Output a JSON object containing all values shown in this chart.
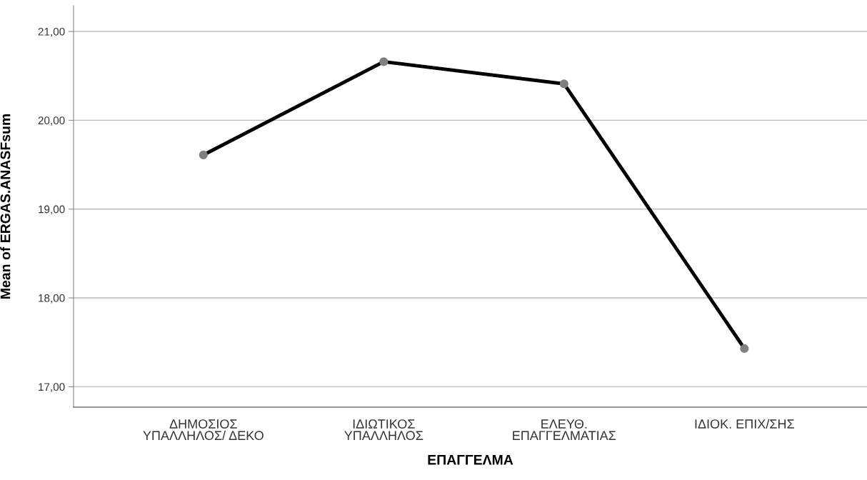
{
  "chart_data": {
    "type": "line",
    "xlabel": "ΕΠΑΓΓΕΛΜΑ",
    "ylabel": "Mean of ERGAS.ANASFsum",
    "categories": [
      "ΔΗΜΟΣΙΟΣ\nΥΠΑΛΛΗΛΟΣ/ ΔΕΚΟ",
      "ΙΔΙΩΤΙΚΟΣ\nΥΠΑΛΛΗΛΟΣ",
      "ΕΛΕΥΘ.\nΕΠΑΓΓΕΛΜΑΤΙΑΣ",
      "ΙΔΙΟΚ. ΕΠΙΧ/ΣΗΣ"
    ],
    "series": [
      {
        "color": "#000000",
        "values": [
          19.61,
          20.66,
          20.41,
          17.43
        ]
      }
    ],
    "ylim": [
      16.77,
      21.29
    ],
    "yticks": [
      {
        "value": 17,
        "label": "17,00"
      },
      {
        "value": 18,
        "label": "18,00"
      },
      {
        "value": 19,
        "label": "19,00"
      },
      {
        "value": 20,
        "label": "20,00"
      },
      {
        "value": 21,
        "label": "21,00"
      }
    ],
    "grid": "y",
    "marker": "circle",
    "line_style": "solid"
  }
}
